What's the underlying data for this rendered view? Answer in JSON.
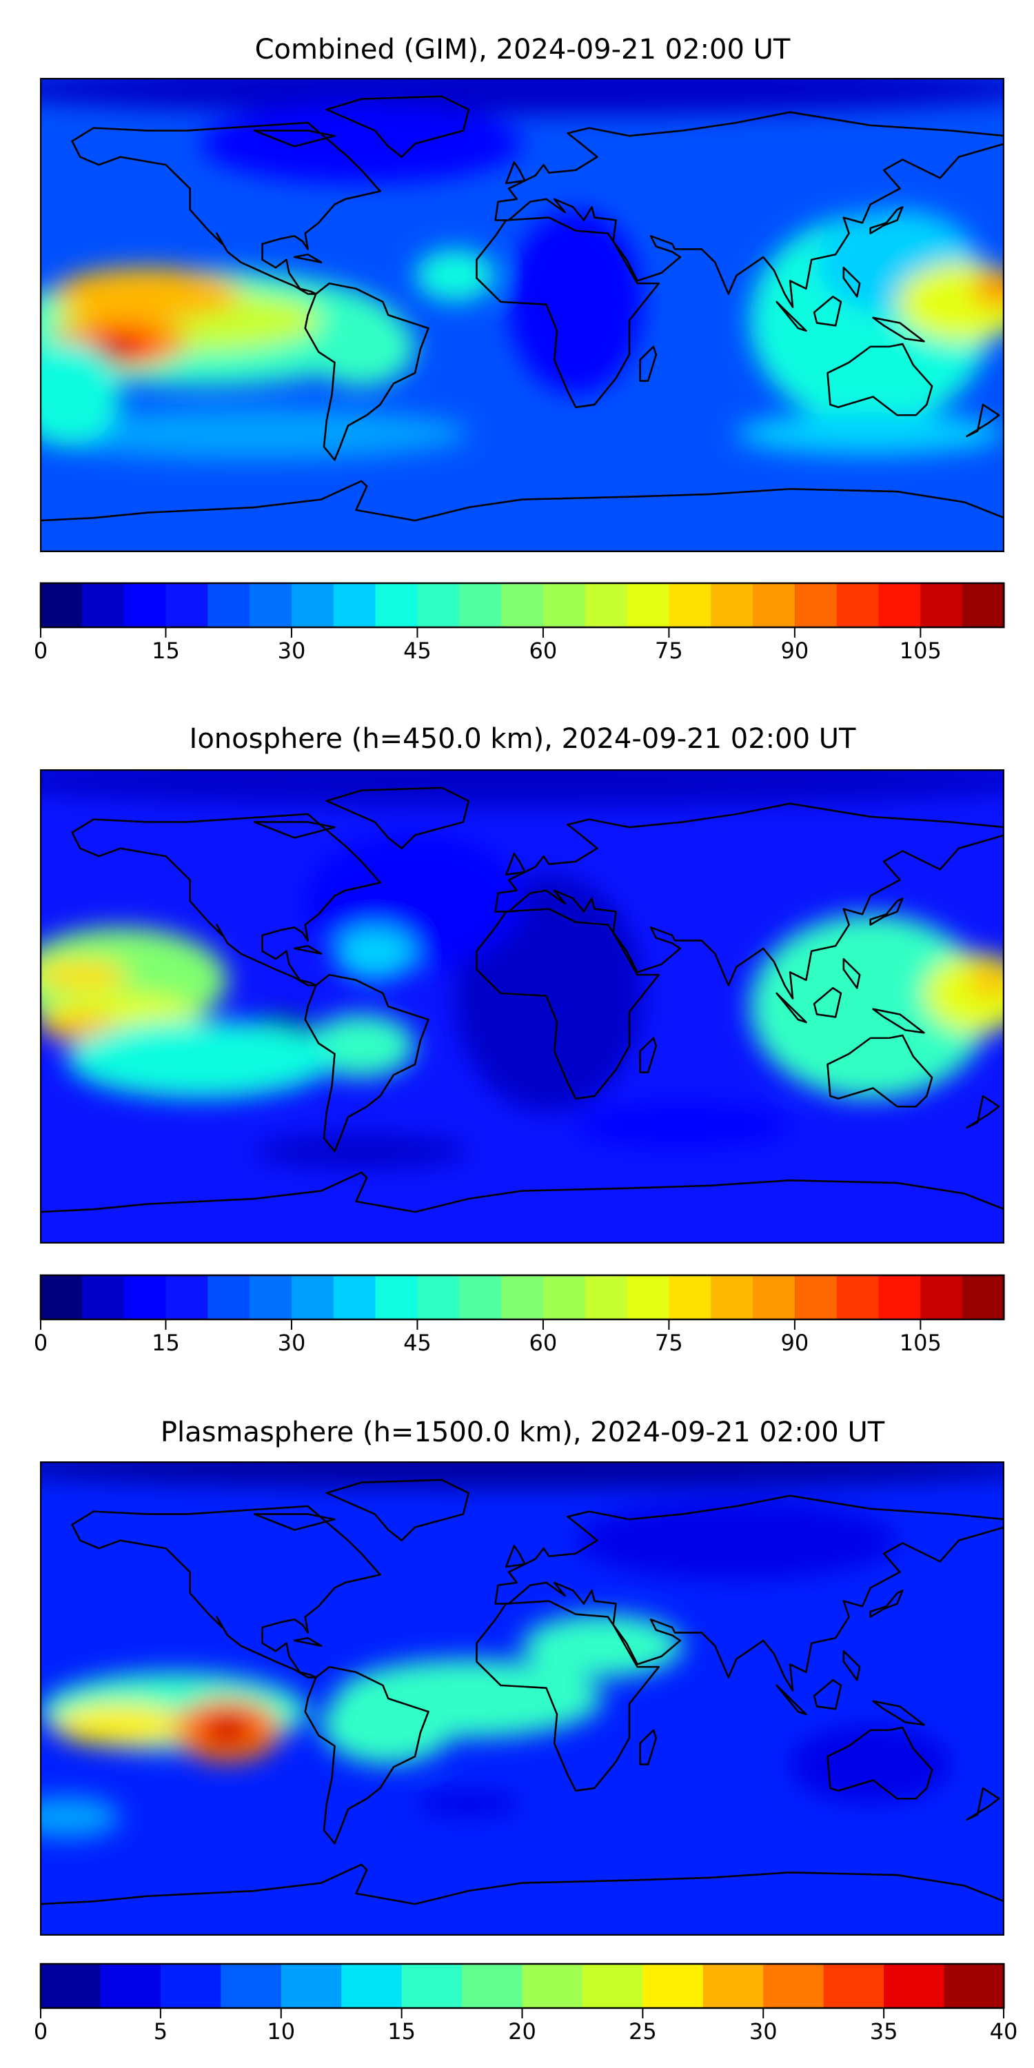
{
  "panels": [
    {
      "title": "Combined (GIM), 2024-09-21 02:00 UT",
      "colorbar": {
        "min": 0,
        "max": 115,
        "step": 5,
        "ticks": [
          "0",
          "15",
          "30",
          "45",
          "60",
          "75",
          "90",
          "105"
        ],
        "colors": [
          "#00007f",
          "#0000c8",
          "#0000ff",
          "#0a14ff",
          "#0050ff",
          "#0070ff",
          "#00a0ff",
          "#00d0ff",
          "#10fce0",
          "#30ffc4",
          "#50ffa0",
          "#80ff70",
          "#a0ff50",
          "#c8ff30",
          "#e4ff14",
          "#ffe000",
          "#ffb800",
          "#ff9800",
          "#ff6800",
          "#ff3800",
          "#ff1400",
          "#c80000",
          "#960000"
        ]
      }
    },
    {
      "title": "Ionosphere  (h=450.0 km), 2024-09-21 02:00 UT",
      "colorbar": {
        "min": 0,
        "max": 115,
        "step": 5,
        "ticks": [
          "0",
          "15",
          "30",
          "45",
          "60",
          "75",
          "90",
          "105"
        ],
        "colors": [
          "#00007f",
          "#0000c8",
          "#0000ff",
          "#0a14ff",
          "#0050ff",
          "#0070ff",
          "#00a0ff",
          "#00d0ff",
          "#10fce0",
          "#30ffc4",
          "#50ffa0",
          "#80ff70",
          "#a0ff50",
          "#c8ff30",
          "#e4ff14",
          "#ffe000",
          "#ffb800",
          "#ff9800",
          "#ff6800",
          "#ff3800",
          "#ff1400",
          "#c80000",
          "#960000"
        ]
      }
    },
    {
      "title": "Plasmasphere (h=1500.0 km), 2024-09-21 02:00 UT",
      "colorbar": {
        "min": 0,
        "max": 40,
        "step": 2.5,
        "ticks": [
          "0",
          "5",
          "10",
          "15",
          "20",
          "25",
          "30",
          "35",
          "40"
        ],
        "colors": [
          "#0000a0",
          "#0000e8",
          "#0020ff",
          "#0060ff",
          "#00a0ff",
          "#00e4f8",
          "#30ffc8",
          "#60ff90",
          "#a0ff50",
          "#c8ff28",
          "#fff000",
          "#ffb000",
          "#ff7800",
          "#ff3c00",
          "#e80000",
          "#a00000"
        ]
      }
    }
  ],
  "chart_data": [
    {
      "type": "heatmap",
      "title": "Combined (GIM), 2024-09-21 02:00 UT",
      "projection": "equirectangular",
      "lon_range": [
        -180,
        180
      ],
      "lat_range": [
        -90,
        90
      ],
      "colorbar_range": [
        0,
        115
      ],
      "colorbar_ticks": [
        0,
        15,
        30,
        45,
        60,
        75,
        90,
        105
      ],
      "levels_step": 5,
      "max_region": "central Pacific south of equator (~100-115)"
    },
    {
      "type": "heatmap",
      "title": "Ionosphere  (h=450.0 km), 2024-09-21 02:00 UT",
      "projection": "equirectangular",
      "lon_range": [
        -180,
        180
      ],
      "lat_range": [
        -90,
        90
      ],
      "colorbar_range": [
        0,
        115
      ],
      "colorbar_ticks": [
        0,
        15,
        30,
        45,
        60,
        75,
        90,
        105
      ],
      "levels_step": 5
    },
    {
      "type": "heatmap",
      "title": "Plasmasphere (h=1500.0 km), 2024-09-21 02:00 UT",
      "projection": "equirectangular",
      "lon_range": [
        -180,
        180
      ],
      "lat_range": [
        -90,
        90
      ],
      "colorbar_range": [
        0,
        40
      ],
      "colorbar_ticks": [
        0,
        5,
        10,
        15,
        20,
        25,
        30,
        35,
        40
      ],
      "levels_step": 2.5,
      "max_region": "eastern Pacific near equator (~37-40)"
    }
  ]
}
